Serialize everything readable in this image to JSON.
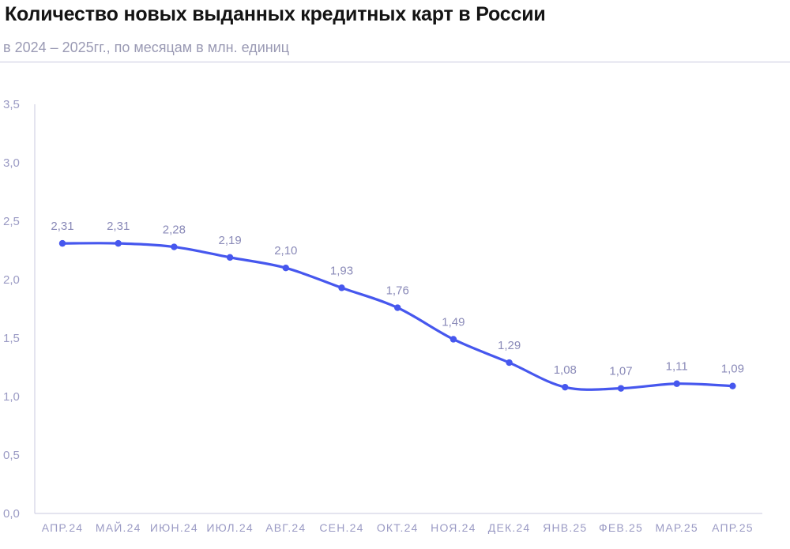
{
  "header": {
    "title": "Количество новых выданных кредитных карт в России",
    "subtitle": "в 2024 – 2025гг., по месяцам в млн. единиц"
  },
  "colors": {
    "line": "#4657ee",
    "axis": "#c9c9df",
    "tick_text": "#9a9ac4"
  },
  "chart_data": {
    "type": "line",
    "title": "Количество новых выданных кредитных карт в России",
    "subtitle": "в 2024 – 2025гг., по месяцам в млн. единиц",
    "categories": [
      "АПР.24",
      "МАЙ.24",
      "ИЮН.24",
      "ИЮЛ.24",
      "АВГ.24",
      "СЕН.24",
      "ОКТ.24",
      "НОЯ.24",
      "ДЕК.24",
      "ЯНВ.25",
      "ФЕВ.25",
      "МАР.25",
      "АПР.25"
    ],
    "values": [
      2.31,
      2.31,
      2.28,
      2.19,
      2.1,
      1.93,
      1.76,
      1.49,
      1.29,
      1.08,
      1.07,
      1.11,
      1.09
    ],
    "value_labels": [
      "2,31",
      "2,31",
      "2,28",
      "2,19",
      "2,10",
      "1,93",
      "1,76",
      "1,49",
      "1,29",
      "1,08",
      "1,07",
      "1,11",
      "1,09"
    ],
    "y_ticks": [
      0,
      0.5,
      1.0,
      1.5,
      2.0,
      2.5,
      3.0,
      3.5
    ],
    "y_tick_labels": [
      "0,0",
      "0,5",
      "1,0",
      "1,5",
      "2,0",
      "2,5",
      "3,0",
      "3,5"
    ],
    "ylim": [
      0,
      3.5
    ],
    "grid": false,
    "legend": "none",
    "smooth": true
  }
}
